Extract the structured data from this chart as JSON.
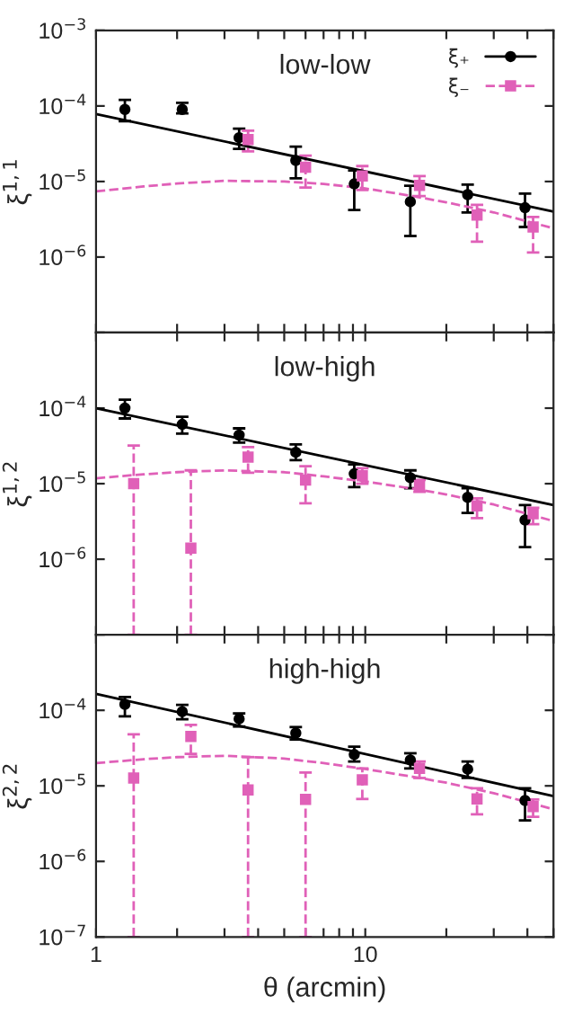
{
  "chart_data": [
    {
      "type": "scatter",
      "annotations": [
        "low-low"
      ],
      "ylabel": "ξ$^{1,1}$",
      "log": "xy",
      "legend": "top right",
      "tick_labels": "y",
      "xlim": [
        1,
        50
      ],
      "xticks": [
        1,
        {
          "value": 2,
          "label": null
        },
        {
          "value": 3,
          "label": null
        },
        {
          "value": 4,
          "label": null
        },
        {
          "value": 5,
          "label": null
        },
        {
          "value": 6,
          "label": null
        },
        {
          "value": 7,
          "label": null
        },
        {
          "value": 8,
          "label": null
        },
        {
          "value": 9,
          "label": null
        },
        10,
        {
          "value": 20,
          "label": null
        },
        {
          "value": 30,
          "label": null
        },
        {
          "value": 40,
          "label": null
        },
        {
          "value": 50,
          "label": null
        }
      ],
      "ylim": [
        1e-07,
        0.001
      ],
      "yticks": [
        {
          "value": 1e-07,
          "label": null
        },
        {
          "value": 1e-06,
          "label": "10$^{−6}$"
        },
        {
          "value": 1e-05,
          "label": "10$^{−5}$"
        },
        {
          "value": 0.0001,
          "label": "10$^{−4}$"
        },
        {
          "value": 0.001,
          "label": "10$^{−3}$"
        }
      ],
      "series": [
        {
          "name": "ξ₊",
          "color": "#000000",
          "marker": "circle",
          "x": [
            1.28,
            2.09,
            3.4,
            5.52,
            9.1,
            14.7,
            24,
            39.2
          ],
          "values": [
            9e-05,
            9e-05,
            3.8e-05,
            1.9e-05,
            9.3e-06,
            5.4e-06,
            6.7e-06,
            4.5e-06
          ],
          "errors": [
            [
              6.3e-05,
              0.00012
            ],
            [
              8e-05,
              0.00011
            ],
            [
              2.7e-05,
              5e-05
            ],
            [
              1.1e-05,
              2.9e-05
            ],
            [
              4.2e-06,
              1.4e-05
            ],
            [
              1.9e-06,
              8.8e-06
            ],
            [
              3.9e-06,
              9.1e-06
            ],
            [
              2.5e-06,
              6.9e-06
            ]
          ]
        },
        {
          "name": "ξ₋",
          "color": "#e060b8",
          "marker": "square",
          "line_style": "dashed",
          "x": [
            3.67,
            6.0,
            9.75,
            15.9,
            26,
            42
          ],
          "values": [
            3.6e-05,
            1.55e-05,
            1.18e-05,
            8.9e-06,
            3.6e-06,
            2.5e-06
          ],
          "errors": [
            [
              2.5e-05,
              4.7e-05
            ],
            [
              8.3e-06,
              2.2e-05
            ],
            [
              7.7e-06,
              1.6e-05
            ],
            [
              6.4e-06,
              1.18e-05
            ],
            [
              1.6e-06,
              4.9e-06
            ],
            [
              1.15e-06,
              3.4e-06
            ]
          ]
        },
        {
          "type": "line",
          "color": "#000000",
          "line_style": "solid",
          "x": [
            1,
            50
          ],
          "values": [
            7.8e-05,
            4e-06
          ]
        },
        {
          "type": "line",
          "color": "#e060b8",
          "line_style": "dashed",
          "x": [
            1,
            1.5,
            2,
            3,
            5,
            7,
            10,
            15,
            20,
            30,
            50
          ],
          "values": [
            7.4e-06,
            8.6e-06,
            9.4e-06,
            1.02e-05,
            1e-05,
            9.3e-06,
            8.1e-06,
            6.4e-06,
            5.3e-06,
            3.9e-06,
            2.4e-06
          ]
        }
      ]
    },
    {
      "type": "scatter",
      "annotations": [
        "low-high"
      ],
      "ylabel": "ξ$^{1,2}$",
      "log": "xy",
      "legend": false,
      "tick_labels": "y",
      "xlim": [
        1,
        50
      ],
      "xticks": [
        1,
        {
          "value": 2,
          "label": null
        },
        {
          "value": 3,
          "label": null
        },
        {
          "value": 4,
          "label": null
        },
        {
          "value": 5,
          "label": null
        },
        {
          "value": 6,
          "label": null
        },
        {
          "value": 7,
          "label": null
        },
        {
          "value": 8,
          "label": null
        },
        {
          "value": 9,
          "label": null
        },
        10,
        {
          "value": 20,
          "label": null
        },
        {
          "value": 30,
          "label": null
        },
        {
          "value": 40,
          "label": null
        },
        {
          "value": 50,
          "label": null
        }
      ],
      "ylim": [
        1e-07,
        0.001
      ],
      "yticks": [
        {
          "value": 1e-07,
          "label": null
        },
        {
          "value": 1e-06,
          "label": "10$^{−6}$"
        },
        {
          "value": 1e-05,
          "label": "10$^{−5}$"
        },
        {
          "value": 0.0001,
          "label": "10$^{−4}$"
        },
        {
          "value": 0.001,
          "label": null
        }
      ],
      "series": [
        {
          "color": "#000000",
          "marker": "circle",
          "x": [
            1.28,
            2.09,
            3.4,
            5.52,
            9.1,
            14.7,
            24,
            39.2
          ],
          "values": [
            0.0001,
            6.1e-05,
            4.4e-05,
            2.6e-05,
            1.35e-05,
            1.2e-05,
            6.6e-06,
            3.3e-06
          ],
          "errors": [
            [
              7.3e-05,
              0.000129
            ],
            [
              4.6e-05,
              7.7e-05
            ],
            [
              3.5e-05,
              5.4e-05
            ],
            [
              2.05e-05,
              3.3e-05
            ],
            [
              9e-06,
              1.8e-05
            ],
            [
              8.7e-06,
              1.5e-05
            ],
            [
              4.1e-06,
              8.7e-06
            ],
            [
              1.45e-06,
              5.2e-06
            ]
          ]
        },
        {
          "color": "#e060b8",
          "marker": "square",
          "line_style": "dashed",
          "x": [
            1.38,
            2.25,
            3.67,
            6.0,
            9.75,
            15.9,
            26,
            42
          ],
          "values": [
            1e-05,
            1.4e-06,
            2.24e-05,
            1.12e-05,
            1.27e-05,
            9.5e-06,
            5.1e-06,
            4e-06
          ],
          "errors": [
            [
              1e-07,
              3.2e-05
            ],
            [
              1e-07,
              1.5e-05
            ],
            [
              1.4e-05,
              3.05e-05
            ],
            [
              5.5e-06,
              1.7e-05
            ],
            [
              1e-05,
              1.6e-05
            ],
            [
              7.8e-06,
              1.12e-05
            ],
            [
              3.5e-06,
              6.4e-06
            ],
            [
              2.9e-06,
              4.8e-06
            ]
          ]
        },
        {
          "type": "line",
          "color": "#000000",
          "line_style": "solid",
          "x": [
            1,
            50
          ],
          "values": [
            0.0001,
            5.2e-06
          ]
        },
        {
          "type": "line",
          "color": "#e060b8",
          "line_style": "dashed",
          "x": [
            1,
            1.5,
            2,
            3,
            5,
            7,
            10,
            15,
            20,
            30,
            50
          ],
          "values": [
            1.18e-05,
            1.33e-05,
            1.42e-05,
            1.5e-05,
            1.42e-05,
            1.25e-05,
            1.07e-05,
            8.6e-06,
            7.2e-06,
            5.3e-06,
            3.2e-06
          ]
        }
      ]
    },
    {
      "type": "scatter",
      "annotations": [
        "high-high"
      ],
      "ylabel": "ξ$^{2,2}$",
      "xlabel": "θ (arcmin)",
      "log": "xy",
      "legend": false,
      "xlim": [
        1,
        50
      ],
      "xticks": [
        1,
        {
          "value": 2,
          "label": null
        },
        {
          "value": 3,
          "label": null
        },
        {
          "value": 4,
          "label": null
        },
        {
          "value": 5,
          "label": null
        },
        {
          "value": 6,
          "label": null
        },
        {
          "value": 7,
          "label": null
        },
        {
          "value": 8,
          "label": null
        },
        {
          "value": 9,
          "label": null
        },
        10,
        {
          "value": 20,
          "label": null
        },
        {
          "value": 30,
          "label": null
        },
        {
          "value": 40,
          "label": null
        },
        {
          "value": 50,
          "label": null
        }
      ],
      "ylim": [
        1e-07,
        0.001
      ],
      "yticks": [
        {
          "value": 1e-07,
          "label": "10$^{−7}$"
        },
        {
          "value": 1e-06,
          "label": "10$^{−6}$"
        },
        {
          "value": 1e-05,
          "label": "10$^{−5}$"
        },
        {
          "value": 0.0001,
          "label": "10$^{−4}$"
        },
        {
          "value": 0.001,
          "label": null
        }
      ],
      "series": [
        {
          "color": "#000000",
          "marker": "circle",
          "x": [
            1.28,
            2.09,
            3.4,
            5.52,
            9.1,
            14.7,
            24,
            39.2
          ],
          "values": [
            0.00012,
            9.6e-05,
            7.7e-05,
            5e-05,
            2.6e-05,
            2.2e-05,
            1.66e-05,
            6.4e-06
          ],
          "errors": [
            [
              8.3e-05,
              0.00015
            ],
            [
              7.6e-05,
              0.000118
            ],
            [
              6.1e-05,
              9.1e-05
            ],
            [
              4.1e-05,
              6e-05
            ],
            [
              2.1e-05,
              3.3e-05
            ],
            [
              1.7e-05,
              2.7e-05
            ],
            [
              1.27e-05,
              2.1e-05
            ],
            [
              3.5e-06,
              9.3e-06
            ]
          ]
        },
        {
          "color": "#e060b8",
          "marker": "square",
          "line_style": "dashed",
          "x": [
            1.38,
            2.25,
            3.67,
            6.0,
            9.75,
            15.9,
            26,
            42
          ],
          "values": [
            1.27e-05,
            4.5e-05,
            8.8e-06,
            6.6e-06,
            1.2e-05,
            1.7e-05,
            6.7e-06,
            5.3e-06
          ],
          "errors": [
            [
              1e-07,
              4.8e-05
            ],
            [
              2.65e-05,
              6.4e-05
            ],
            [
              1e-07,
              2.4e-05
            ],
            [
              1e-07,
              1.5e-05
            ],
            [
              6.7e-06,
              1.7e-05
            ],
            [
              1.27e-05,
              2.1e-05
            ],
            [
              4.2e-06,
              9.3e-06
            ],
            [
              3.9e-06,
              6.6e-06
            ]
          ]
        },
        {
          "type": "line",
          "color": "#000000",
          "line_style": "solid",
          "x": [
            1,
            50
          ],
          "values": [
            0.000165,
            7.3e-06
          ]
        },
        {
          "type": "line",
          "color": "#e060b8",
          "line_style": "dashed",
          "x": [
            1,
            1.5,
            2,
            3,
            5,
            7,
            10,
            15,
            20,
            30,
            50
          ],
          "values": [
            2e-05,
            2.25e-05,
            2.4e-05,
            2.5e-05,
            2.3e-05,
            2e-05,
            1.67e-05,
            1.32e-05,
            1.1e-05,
            8e-06,
            4.9e-06
          ]
        }
      ]
    }
  ]
}
